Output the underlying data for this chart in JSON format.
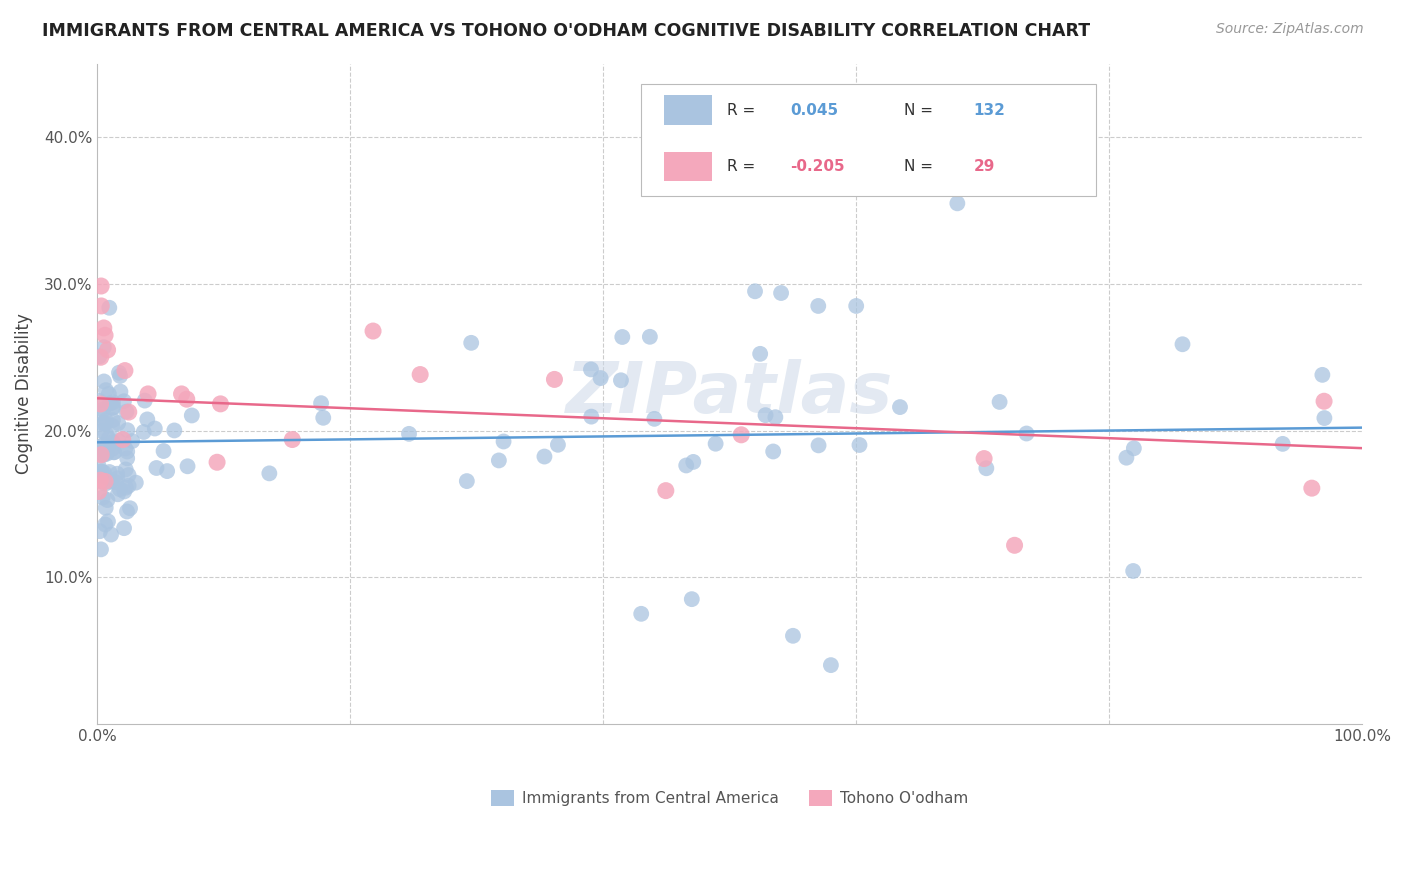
{
  "title": "IMMIGRANTS FROM CENTRAL AMERICA VS TOHONO O'ODHAM COGNITIVE DISABILITY CORRELATION CHART",
  "source": "Source: ZipAtlas.com",
  "ylabel": "Cognitive Disability",
  "color_blue": "#aac4e0",
  "color_pink": "#f4a8bc",
  "line_blue": "#5b9bd5",
  "line_pink": "#e8688a",
  "watermark": "ZIPatlas",
  "r1": "0.045",
  "n1": "132",
  "r2": "-0.205",
  "n2": "29",
  "label1": "Immigrants from Central America",
  "label2": "Tohono O'odham"
}
